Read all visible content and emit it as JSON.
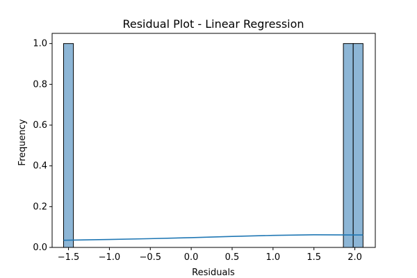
{
  "chart_data": {
    "type": "bar",
    "title": "Residual Plot - Linear Regression",
    "xlabel": "Residuals",
    "ylabel": "Frequency",
    "xlim": [
      -1.7,
      2.25
    ],
    "ylim": [
      0,
      1.05
    ],
    "x_ticks": [
      -1.5,
      -1.0,
      -0.5,
      0.0,
      0.5,
      1.0,
      1.5,
      2.0
    ],
    "x_tick_labels": [
      "−1.5",
      "−1.0",
      "−0.5",
      "0.0",
      "0.5",
      "1.0",
      "1.5",
      "2.0"
    ],
    "y_ticks": [
      0.0,
      0.2,
      0.4,
      0.6,
      0.8,
      1.0
    ],
    "y_tick_labels": [
      "0.0",
      "0.2",
      "0.4",
      "0.6",
      "0.8",
      "1.0"
    ],
    "bins": [
      {
        "x0": -1.56,
        "x1": -1.44,
        "count": 1
      },
      {
        "x0": 1.86,
        "x1": 1.98,
        "count": 1
      },
      {
        "x0": 1.98,
        "x1": 2.1,
        "count": 1
      }
    ],
    "kde": {
      "x": [
        -1.56,
        -1.0,
        -0.5,
        0.0,
        0.5,
        1.0,
        1.5,
        2.1
      ],
      "y": [
        0.035,
        0.039,
        0.043,
        0.048,
        0.054,
        0.059,
        0.062,
        0.061
      ]
    },
    "grid": false,
    "colors": {
      "bar_fill": "#8db6d6",
      "bar_edge": "#000000",
      "kde_line": "#1f77b4"
    }
  }
}
